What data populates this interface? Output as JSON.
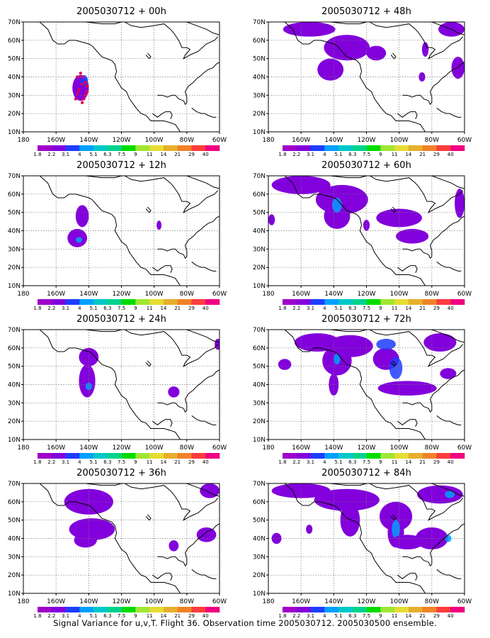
{
  "caption": "Signal Variance for u,v,T. Flight 36. Observation time 2005030712. 2005030500 ensemble.",
  "chart_data": {
    "type": "heatmap",
    "lat_labels": [
      "70N",
      "60N",
      "50N",
      "40N",
      "30N",
      "20N",
      "10N"
    ],
    "lon_labels": [
      "180",
      "160W",
      "140W",
      "120W",
      "100W",
      "80W",
      "60W"
    ],
    "xlim": [
      180,
      300
    ],
    "ylim": [
      10,
      70
    ],
    "grid": true,
    "colorbar": {
      "levels": [
        "1.8",
        "2.2",
        "3.1",
        "4",
        "5.1",
        "6.3",
        "7.5",
        "9",
        "11",
        "14",
        "21",
        "29",
        "40"
      ],
      "colors": [
        "#a000c8",
        "#8200dc",
        "#1e3cff",
        "#00a0ff",
        "#00c8c8",
        "#00d28c",
        "#00dc00",
        "#a0e632",
        "#e6dc32",
        "#e6af2d",
        "#f08228",
        "#fa3c3c",
        "#f00082"
      ]
    },
    "panels": [
      {
        "title": "2005030712 + 00h",
        "features": [
          {
            "lon": 215,
            "lat": 34,
            "rx": 5,
            "ry": 7,
            "level": 1
          },
          {
            "lon": 217,
            "lat": 38,
            "rx": 2.5,
            "ry": 3,
            "level": 2
          }
        ],
        "points": [
          [
            212,
            28
          ],
          [
            213,
            31
          ],
          [
            214,
            33
          ],
          [
            216,
            36
          ],
          [
            218,
            37
          ],
          [
            219,
            35
          ],
          [
            219,
            32
          ],
          [
            218,
            30
          ],
          [
            217,
            28
          ],
          [
            216,
            26
          ],
          [
            213,
            40
          ],
          [
            215,
            42
          ],
          [
            216,
            40
          ]
        ]
      },
      {
        "title": "2005030712 + 12h",
        "features": [
          {
            "lon": 216,
            "lat": 48,
            "rx": 4,
            "ry": 6,
            "level": 1
          },
          {
            "lon": 213,
            "lat": 36,
            "rx": 6,
            "ry": 5,
            "level": 1
          },
          {
            "lon": 214,
            "lat": 35,
            "rx": 2,
            "ry": 1.5,
            "level": 3
          },
          {
            "lon": 263,
            "lat": 43,
            "rx": 1.5,
            "ry": 2.5,
            "level": 1
          }
        ],
        "points": []
      },
      {
        "title": "2005030712 + 24h",
        "features": [
          {
            "lon": 220,
            "lat": 55,
            "rx": 6,
            "ry": 5,
            "level": 1
          },
          {
            "lon": 219,
            "lat": 42,
            "rx": 5,
            "ry": 9,
            "level": 1
          },
          {
            "lon": 220,
            "lat": 39,
            "rx": 2,
            "ry": 2,
            "level": 3
          },
          {
            "lon": 272,
            "lat": 36,
            "rx": 3.5,
            "ry": 3,
            "level": 1
          },
          {
            "lon": 299,
            "lat": 62,
            "rx": 2,
            "ry": 3,
            "level": 1
          }
        ],
        "points": []
      },
      {
        "title": "2005030712 + 36h",
        "features": [
          {
            "lon": 220,
            "lat": 60,
            "rx": 15,
            "ry": 7,
            "level": 1
          },
          {
            "lon": 222,
            "lat": 45,
            "rx": 14,
            "ry": 6,
            "level": 1
          },
          {
            "lon": 218,
            "lat": 39,
            "rx": 7,
            "ry": 4,
            "level": 1
          },
          {
            "lon": 272,
            "lat": 36,
            "rx": 3,
            "ry": 3,
            "level": 1
          },
          {
            "lon": 292,
            "lat": 42,
            "rx": 6,
            "ry": 4,
            "level": 1
          },
          {
            "lon": 294,
            "lat": 66,
            "rx": 6,
            "ry": 4,
            "level": 1
          }
        ],
        "points": []
      },
      {
        "title": "2005030712 + 48h",
        "features": [
          {
            "lon": 205,
            "lat": 66,
            "rx": 16,
            "ry": 4,
            "level": 1
          },
          {
            "lon": 228,
            "lat": 56,
            "rx": 14,
            "ry": 7,
            "level": 1
          },
          {
            "lon": 218,
            "lat": 44,
            "rx": 8,
            "ry": 6,
            "level": 1
          },
          {
            "lon": 246,
            "lat": 53,
            "rx": 6,
            "ry": 4,
            "level": 1
          },
          {
            "lon": 276,
            "lat": 55,
            "rx": 2,
            "ry": 4,
            "level": 1
          },
          {
            "lon": 274,
            "lat": 40,
            "rx": 2,
            "ry": 2.5,
            "level": 1
          },
          {
            "lon": 296,
            "lat": 45,
            "rx": 4,
            "ry": 6,
            "level": 1
          },
          {
            "lon": 292,
            "lat": 66,
            "rx": 8,
            "ry": 4,
            "level": 1
          }
        ],
        "points": []
      },
      {
        "title": "2005030712 + 60h",
        "features": [
          {
            "lon": 200,
            "lat": 65,
            "rx": 18,
            "ry": 5,
            "level": 1
          },
          {
            "lon": 225,
            "lat": 57,
            "rx": 16,
            "ry": 8,
            "level": 1
          },
          {
            "lon": 222,
            "lat": 48,
            "rx": 8,
            "ry": 7,
            "level": 1
          },
          {
            "lon": 222,
            "lat": 54,
            "rx": 3,
            "ry": 4,
            "level": 3
          },
          {
            "lon": 260,
            "lat": 47,
            "rx": 14,
            "ry": 5,
            "level": 1
          },
          {
            "lon": 268,
            "lat": 37,
            "rx": 10,
            "ry": 4,
            "level": 1
          },
          {
            "lon": 240,
            "lat": 43,
            "rx": 2,
            "ry": 3,
            "level": 1
          },
          {
            "lon": 297,
            "lat": 55,
            "rx": 3,
            "ry": 8,
            "level": 1
          },
          {
            "lon": 182,
            "lat": 46,
            "rx": 2,
            "ry": 3,
            "level": 1
          }
        ],
        "points": []
      },
      {
        "title": "2005030712 + 72h",
        "features": [
          {
            "lon": 210,
            "lat": 63,
            "rx": 14,
            "ry": 5,
            "level": 1
          },
          {
            "lon": 230,
            "lat": 61,
            "rx": 14,
            "ry": 6,
            "level": 1
          },
          {
            "lon": 222,
            "lat": 53,
            "rx": 9,
            "ry": 8,
            "level": 1
          },
          {
            "lon": 222,
            "lat": 54,
            "rx": 2,
            "ry": 3,
            "level": 3
          },
          {
            "lon": 220,
            "lat": 40,
            "rx": 3,
            "ry": 6,
            "level": 1
          },
          {
            "lon": 252,
            "lat": 54,
            "rx": 8,
            "ry": 6,
            "level": 1
          },
          {
            "lon": 258,
            "lat": 49,
            "rx": 4,
            "ry": 6,
            "level": 2
          },
          {
            "lon": 265,
            "lat": 38,
            "rx": 18,
            "ry": 4,
            "level": 1
          },
          {
            "lon": 290,
            "lat": 46,
            "rx": 5,
            "ry": 3,
            "level": 1
          },
          {
            "lon": 190,
            "lat": 51,
            "rx": 4,
            "ry": 3,
            "level": 1
          },
          {
            "lon": 285,
            "lat": 63,
            "rx": 10,
            "ry": 5,
            "level": 1
          },
          {
            "lon": 252,
            "lat": 62,
            "rx": 6,
            "ry": 3,
            "level": 2
          }
        ],
        "points": []
      },
      {
        "title": "2005030712 + 84h",
        "features": [
          {
            "lon": 200,
            "lat": 66,
            "rx": 18,
            "ry": 4,
            "level": 1
          },
          {
            "lon": 228,
            "lat": 61,
            "rx": 20,
            "ry": 6,
            "level": 1
          },
          {
            "lon": 230,
            "lat": 50,
            "rx": 6,
            "ry": 9,
            "level": 1
          },
          {
            "lon": 258,
            "lat": 52,
            "rx": 10,
            "ry": 8,
            "level": 1
          },
          {
            "lon": 258,
            "lat": 43,
            "rx": 5,
            "ry": 8,
            "level": 1
          },
          {
            "lon": 258,
            "lat": 45,
            "rx": 2.5,
            "ry": 5,
            "level": 3
          },
          {
            "lon": 265,
            "lat": 38,
            "rx": 10,
            "ry": 4,
            "level": 1
          },
          {
            "lon": 280,
            "lat": 40,
            "rx": 10,
            "ry": 6,
            "level": 1
          },
          {
            "lon": 285,
            "lat": 64,
            "rx": 14,
            "ry": 5,
            "level": 1
          },
          {
            "lon": 291,
            "lat": 64,
            "rx": 3,
            "ry": 2,
            "level": 3
          },
          {
            "lon": 290,
            "lat": 40,
            "rx": 2,
            "ry": 2,
            "level": 3
          },
          {
            "lon": 205,
            "lat": 45,
            "rx": 2,
            "ry": 2.5,
            "level": 1
          },
          {
            "lon": 185,
            "lat": 40,
            "rx": 3,
            "ry": 3,
            "level": 1
          }
        ],
        "points": []
      }
    ]
  }
}
